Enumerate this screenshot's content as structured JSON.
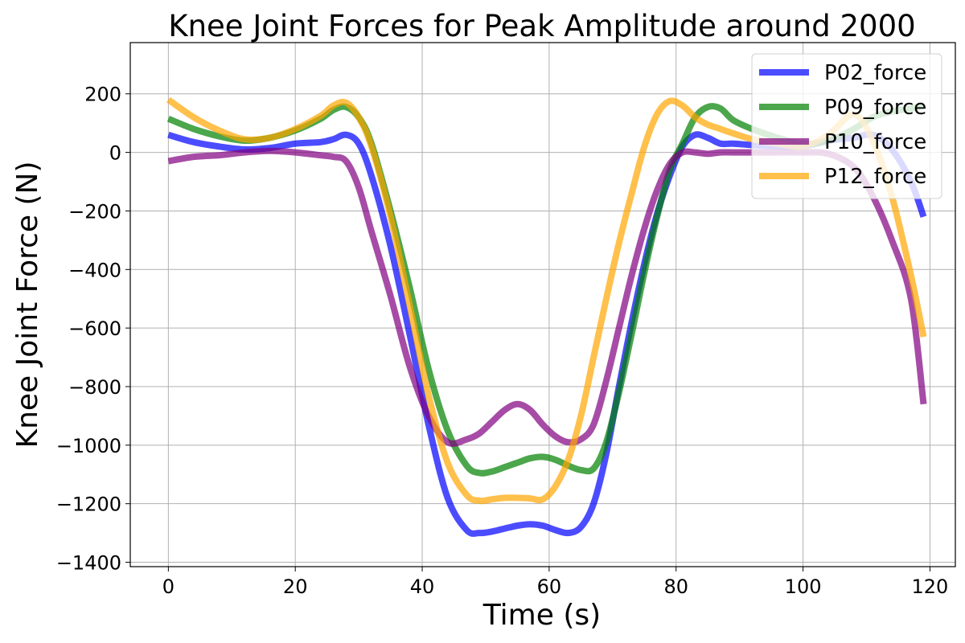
{
  "chart_data": {
    "type": "line",
    "title": "Knee Joint Forces for Peak Amplitude around 2000",
    "xlabel": "Time (s)",
    "ylabel": "Knee Joint Force (N)",
    "xlim": [
      -6,
      124
    ],
    "ylim": [
      -1415,
      375
    ],
    "xticks": [
      0,
      20,
      40,
      60,
      80,
      100,
      120
    ],
    "yticks": [
      200,
      0,
      -200,
      -400,
      -600,
      -800,
      -1000,
      -1200,
      -1400
    ],
    "grid": true,
    "legend_position": "top-right",
    "x": [
      0,
      4,
      8,
      12,
      16,
      20,
      24,
      26,
      28,
      30,
      32,
      35,
      38,
      41,
      44,
      47,
      49,
      51,
      53,
      55,
      57,
      59,
      61,
      63,
      65,
      67,
      69,
      71,
      73,
      75,
      77,
      79,
      81,
      83,
      85,
      87,
      89,
      92,
      96,
      100,
      104,
      108,
      111,
      114,
      117,
      119
    ],
    "series": [
      {
        "name": "P02_force",
        "color": "#0000ff",
        "values": [
          60,
          35,
          20,
          10,
          15,
          30,
          35,
          45,
          60,
          30,
          -80,
          -320,
          -620,
          -930,
          -1180,
          -1290,
          -1300,
          -1295,
          -1285,
          -1275,
          -1270,
          -1275,
          -1290,
          -1300,
          -1280,
          -1200,
          -1030,
          -800,
          -580,
          -380,
          -210,
          -80,
          20,
          60,
          50,
          30,
          30,
          25,
          20,
          20,
          40,
          50,
          60,
          10,
          -100,
          -220
        ]
      },
      {
        "name": "P09_force",
        "color": "#008000",
        "values": [
          115,
          80,
          55,
          40,
          50,
          75,
          115,
          145,
          155,
          120,
          30,
          -200,
          -460,
          -740,
          -950,
          -1070,
          -1095,
          -1090,
          -1075,
          -1060,
          -1045,
          -1040,
          -1050,
          -1070,
          -1085,
          -1080,
          -990,
          -820,
          -620,
          -410,
          -220,
          -60,
          30,
          120,
          155,
          150,
          110,
          80,
          50,
          30,
          40,
          80,
          120,
          140,
          150,
          160
        ]
      },
      {
        "name": "P10_force",
        "color": "#800080",
        "values": [
          -30,
          -15,
          -10,
          0,
          5,
          0,
          -10,
          -15,
          -30,
          -120,
          -270,
          -490,
          -730,
          -900,
          -990,
          -980,
          -960,
          -920,
          -880,
          -860,
          -880,
          -930,
          -970,
          -990,
          -980,
          -930,
          -780,
          -600,
          -420,
          -260,
          -130,
          -40,
          0,
          0,
          -5,
          0,
          0,
          0,
          0,
          0,
          -5,
          -50,
          -150,
          -300,
          -500,
          -860
        ]
      },
      {
        "name": "P12_force",
        "color": "#ffa500",
        "values": [
          180,
          120,
          75,
          45,
          50,
          80,
          125,
          160,
          170,
          120,
          20,
          -220,
          -520,
          -830,
          -1060,
          -1170,
          -1190,
          -1185,
          -1180,
          -1180,
          -1182,
          -1185,
          -1140,
          -1050,
          -900,
          -700,
          -500,
          -310,
          -140,
          20,
          130,
          175,
          160,
          120,
          95,
          80,
          65,
          45,
          30,
          20,
          60,
          130,
          40,
          -150,
          -420,
          -630
        ]
      }
    ]
  }
}
